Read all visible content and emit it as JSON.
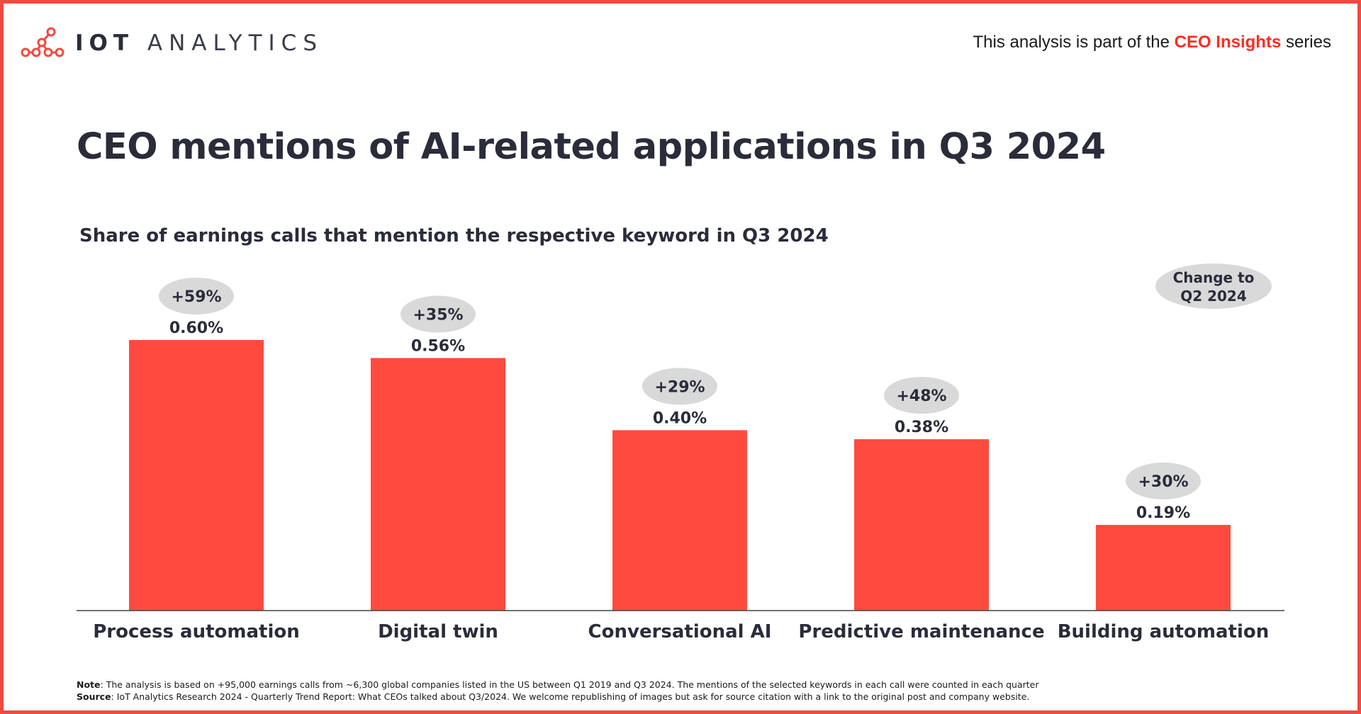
{
  "header": {
    "brand": "IOT ANALYTICS",
    "brand_strong": "IOT",
    "brand_light": "ANALYTICS",
    "series_prefix": "This analysis is part of the",
    "series_highlight": "CEO Insights",
    "series_suffix": "series"
  },
  "colors": {
    "bar": "#ff4a3f",
    "frame": "#f04a41",
    "bubble": "#d9d9d9",
    "text_dark": "#2a2c3a",
    "highlight": "#ff2b22"
  },
  "footer": {
    "note_label": "Note",
    "note_text": ": The analysis is based on +95,000 earnings calls from ~6,300 global companies listed in the US between Q1 2019 and Q3 2024. The mentions of the selected keywords in each call were counted in each quarter",
    "source_label": "Source",
    "source_text": ": IoT Analytics Research 2024 - Quarterly Trend Report: What CEOs talked about Q3/2024. We welcome republishing of images but ask for source citation with a link to the original post and company website."
  },
  "chart_data": {
    "type": "bar",
    "title": "CEO mentions of AI-related applications in Q3 2024",
    "subtitle": "Share of earnings calls that mention the respective keyword in Q3 2024",
    "categories": [
      "Process automation",
      "Digital twin",
      "Conversational AI",
      "Predictive maintenance",
      "Building automation"
    ],
    "values": [
      0.6,
      0.56,
      0.4,
      0.38,
      0.19
    ],
    "value_labels": [
      "0.60%",
      "0.56%",
      "0.40%",
      "0.38%",
      "0.19%"
    ],
    "change_labels": [
      "+59%",
      "+35%",
      "+29%",
      "+48%",
      "+30%"
    ],
    "change_legend": [
      "Change to",
      "Q2 2024"
    ],
    "unit": "%",
    "ylim": [
      0,
      0.6
    ],
    "grid": false,
    "legend": "top-right"
  }
}
